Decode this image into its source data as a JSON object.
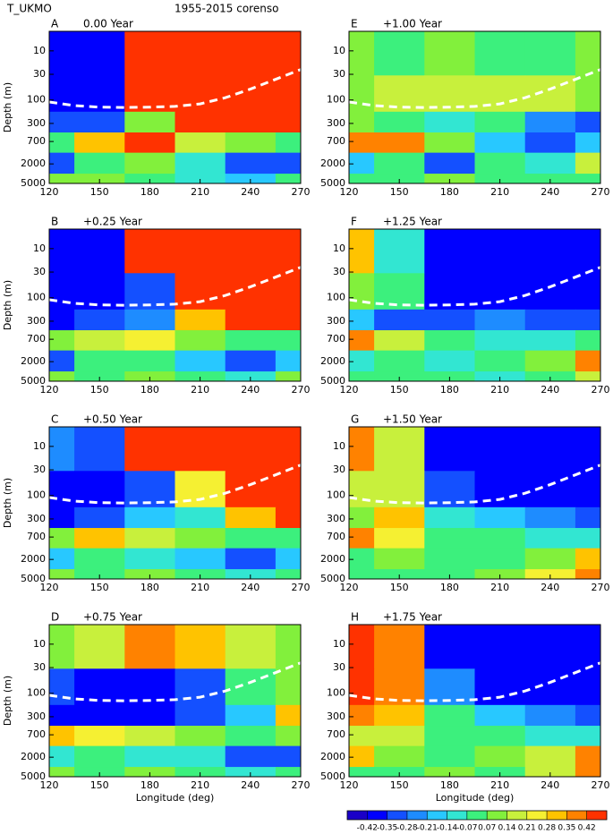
{
  "chart_data": {
    "type": "contour",
    "title": "T_UKMO",
    "subtitle": "1955-2015 corenso",
    "xlabel": "Longitude (deg)",
    "ylabel": "Depth (m)",
    "xlim": [
      120,
      270
    ],
    "xticks": [
      120,
      150,
      180,
      210,
      240,
      270
    ],
    "ylim": [
      4,
      5000
    ],
    "yticks": [
      10,
      30,
      100,
      300,
      700,
      2000,
      5000
    ],
    "log_y": true,
    "y_inverted": true,
    "lon_grid": [
      120,
      150,
      180,
      210,
      240,
      270
    ],
    "depth_grid": [
      10,
      100,
      300,
      700,
      2000,
      5000
    ],
    "thermocline": {
      "lon": [
        120,
        135,
        150,
        165,
        180,
        195,
        210,
        225,
        240,
        255,
        270
      ],
      "depth": [
        110,
        130,
        140,
        142,
        140,
        135,
        120,
        90,
        60,
        38,
        24
      ]
    },
    "colorbar": {
      "levels": [
        -0.42,
        -0.35,
        -0.28,
        -0.21,
        -0.14,
        -0.07,
        0.07,
        0.14,
        0.21,
        0.28,
        0.35,
        0.42
      ],
      "colors": [
        "#1a00c8",
        "#0000ff",
        "#1450ff",
        "#1e8cff",
        "#28c8ff",
        "#32e6d2",
        "#3cf07d",
        "#82f03c",
        "#c8f03c",
        "#f5f032",
        "#ffc300",
        "#ff8200",
        "#ff3200"
      ]
    },
    "panels": [
      {
        "letter": "A",
        "label": "0.00 Year",
        "field": [
          [
            -0.42,
            -0.42,
            0.42,
            0.42,
            0.42,
            0.42
          ],
          [
            -0.42,
            -0.42,
            0.42,
            0.42,
            0.42,
            0.42
          ],
          [
            -0.35,
            -0.3,
            0.1,
            0.42,
            0.42,
            0.42
          ],
          [
            0.0,
            0.28,
            0.42,
            0.2,
            0.1,
            0.0
          ],
          [
            -0.3,
            0.0,
            0.1,
            -0.1,
            -0.35,
            -0.35
          ],
          [
            0.07,
            0.1,
            0.0,
            -0.1,
            -0.2,
            0.0
          ]
        ]
      },
      {
        "letter": "B",
        "label": "+0.25 Year",
        "field": [
          [
            -0.42,
            -0.42,
            0.42,
            0.42,
            0.42,
            0.42
          ],
          [
            -0.42,
            -0.42,
            -0.3,
            0.42,
            0.42,
            0.42
          ],
          [
            -0.42,
            -0.35,
            -0.28,
            0.3,
            0.42,
            0.42
          ],
          [
            0.1,
            0.2,
            0.21,
            0.1,
            0.0,
            0.0
          ],
          [
            -0.3,
            0.0,
            0.0,
            -0.2,
            -0.35,
            -0.2
          ],
          [
            0.1,
            0.0,
            0.07,
            0.0,
            -0.1,
            0.1
          ]
        ]
      },
      {
        "letter": "C",
        "label": "+0.50 Year",
        "field": [
          [
            -0.28,
            -0.35,
            0.42,
            0.42,
            0.42,
            0.42
          ],
          [
            -0.42,
            -0.42,
            -0.35,
            0.21,
            0.42,
            0.42
          ],
          [
            -0.42,
            -0.35,
            -0.2,
            -0.1,
            0.28,
            0.42
          ],
          [
            0.1,
            0.28,
            0.2,
            0.1,
            0.0,
            0.0
          ],
          [
            -0.2,
            0.0,
            -0.1,
            -0.2,
            -0.35,
            -0.2
          ],
          [
            0.07,
            0.0,
            0.1,
            0.0,
            -0.1,
            0.0
          ]
        ]
      },
      {
        "letter": "D",
        "label": "+0.75 Year",
        "field": [
          [
            0.07,
            0.14,
            0.35,
            0.28,
            0.14,
            0.1
          ],
          [
            -0.35,
            -0.42,
            -0.42,
            -0.3,
            0.0,
            0.1
          ],
          [
            -0.42,
            -0.42,
            -0.42,
            -0.35,
            -0.2,
            0.3
          ],
          [
            0.28,
            0.21,
            0.14,
            0.07,
            0.0,
            0.1
          ],
          [
            -0.1,
            0.0,
            -0.1,
            -0.1,
            -0.35,
            -0.3
          ],
          [
            0.1,
            0.0,
            0.1,
            0.0,
            -0.1,
            0.0
          ]
        ]
      },
      {
        "letter": "E",
        "label": "+1.00 Year",
        "field": [
          [
            0.07,
            0.0,
            0.1,
            0.0,
            0.0,
            0.07
          ],
          [
            0.07,
            0.14,
            0.14,
            0.14,
            0.14,
            0.1
          ],
          [
            0.1,
            0.0,
            -0.1,
            0.0,
            -0.28,
            -0.35
          ],
          [
            0.35,
            0.35,
            0.1,
            -0.2,
            -0.35,
            -0.2
          ],
          [
            -0.2,
            0.0,
            -0.3,
            0.0,
            -0.1,
            0.2
          ],
          [
            0.0,
            0.0,
            0.07,
            0.0,
            0.0,
            0.0
          ]
        ]
      },
      {
        "letter": "F",
        "label": "+1.25 Year",
        "field": [
          [
            0.3,
            -0.1,
            -0.42,
            -0.42,
            -0.42,
            -0.42
          ],
          [
            0.1,
            0.0,
            -0.42,
            -0.42,
            -0.42,
            -0.42
          ],
          [
            -0.2,
            -0.3,
            -0.35,
            -0.28,
            -0.3,
            -0.35
          ],
          [
            0.35,
            0.2,
            0.0,
            -0.1,
            -0.1,
            0.0
          ],
          [
            -0.1,
            0.0,
            -0.1,
            0.0,
            0.1,
            0.35
          ],
          [
            0.0,
            0.0,
            0.0,
            -0.1,
            0.0,
            0.2
          ]
        ]
      },
      {
        "letter": "G",
        "label": "+1.50 Year",
        "field": [
          [
            0.35,
            0.2,
            -0.42,
            -0.42,
            -0.42,
            -0.42
          ],
          [
            0.2,
            0.14,
            -0.35,
            -0.42,
            -0.42,
            -0.42
          ],
          [
            0.1,
            0.28,
            -0.1,
            -0.2,
            -0.28,
            -0.35
          ],
          [
            0.35,
            0.21,
            0.0,
            0.0,
            -0.1,
            -0.1
          ],
          [
            0.0,
            0.1,
            0.0,
            0.0,
            0.1,
            0.28
          ],
          [
            0.0,
            0.0,
            0.0,
            0.1,
            0.21,
            0.35
          ]
        ]
      },
      {
        "letter": "H",
        "label": "+1.75 Year",
        "field": [
          [
            0.42,
            0.35,
            -0.42,
            -0.42,
            -0.42,
            -0.42
          ],
          [
            0.42,
            0.35,
            -0.28,
            -0.42,
            -0.42,
            -0.42
          ],
          [
            0.35,
            0.28,
            0.0,
            -0.2,
            -0.28,
            -0.35
          ],
          [
            0.2,
            0.14,
            0.0,
            0.0,
            -0.1,
            -0.1
          ],
          [
            0.3,
            0.1,
            0.0,
            0.1,
            0.2,
            0.35
          ],
          [
            0.0,
            0.0,
            0.07,
            0.0,
            0.2,
            0.35
          ]
        ]
      }
    ]
  }
}
